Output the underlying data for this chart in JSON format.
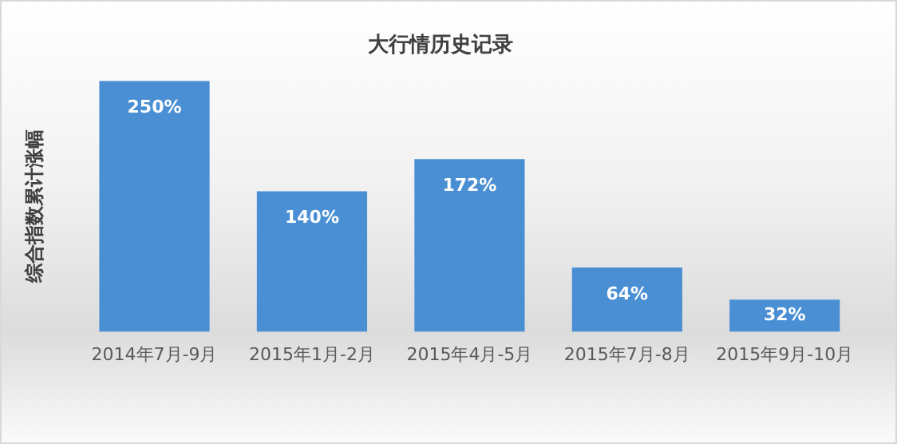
{
  "chart_data": {
    "type": "bar",
    "title": "大行情历史记录",
    "ylabel": "综合指数累计涨幅",
    "categories": [
      "2014年7月-9月",
      "2015年1月-2月",
      "2015年4月-5月",
      "2015年7月-8月",
      "2015年9月-10月"
    ],
    "values": [
      250,
      140,
      172,
      64,
      32
    ],
    "color": "#4a8fd4",
    "value_labels": [
      "250%",
      "140%",
      "172%",
      "64%",
      "32%"
    ],
    "grid": false,
    "legend": false
  }
}
